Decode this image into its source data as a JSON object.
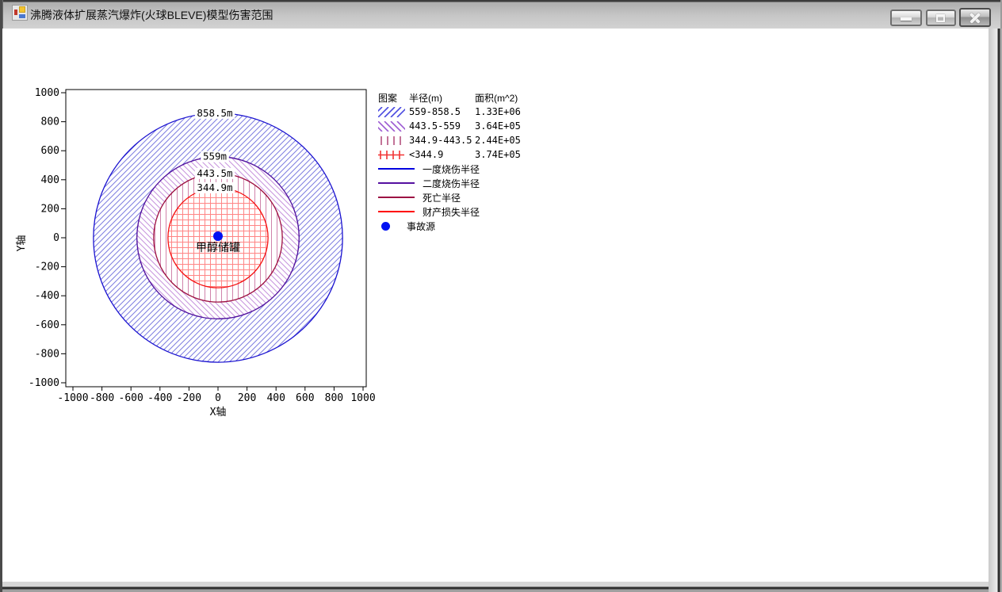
{
  "window": {
    "title": "沸腾液体扩展蒸汽爆炸(火球BLEVE)模型伤害范围"
  },
  "chart_data": {
    "type": "concentric_zones",
    "xlabel": "X轴",
    "ylabel": "Y轴",
    "xlim": [
      -1050,
      1050
    ],
    "ylim": [
      -1050,
      1050
    ],
    "xticks": [
      -1000,
      -800,
      -600,
      -400,
      -200,
      0,
      200,
      400,
      600,
      800,
      1000
    ],
    "yticks": [
      1000,
      800,
      600,
      400,
      200,
      0,
      -200,
      -400,
      -600,
      -800,
      -1000
    ],
    "grid": false,
    "center": {
      "x": 0,
      "y": 0,
      "label": "甲醇储罐",
      "marker_color": "#0011f2"
    },
    "zones": [
      {
        "label": "858.5m",
        "outer_radius_m": 858.5,
        "radius_range_m": "559-858.5",
        "area_m2": "1.33E+06",
        "meaning": "一度烧伤半径",
        "stroke_color": "#1a12d0",
        "hatch": "diag-right",
        "hatch_color": "#7d7de0",
        "swatch_color": "#4a4ae0"
      },
      {
        "label": "559m",
        "outer_radius_m": 559,
        "radius_range_m": "443.5-559",
        "area_m2": "3.64E+05",
        "meaning": "二度烧伤半径",
        "stroke_color": "#50109d",
        "hatch": "diag-left",
        "hatch_color": "#c693dd",
        "swatch_color": "#9c5ad2"
      },
      {
        "label": "443.5m",
        "outer_radius_m": 443.5,
        "radius_range_m": "344.9-443.5",
        "area_m2": "2.44E+05",
        "meaning": "死亡半径",
        "stroke_color": "#9d1040",
        "hatch": "vertical",
        "hatch_color": "#d083ab",
        "swatch_color": "#b4517f"
      },
      {
        "label": "344.9m",
        "outer_radius_m": 344.9,
        "radius_range_m": "<344.9",
        "area_m2": "3.74E+05",
        "meaning": "财产损失半径",
        "stroke_color": "#f51111",
        "hatch": "cross",
        "hatch_color": "#ff8585",
        "swatch_color": "#f23333"
      }
    ]
  },
  "legend": {
    "header": {
      "pattern": "图案",
      "radius": "半径(m)",
      "area": "面积(m^2)"
    },
    "lines": [
      {
        "label": "一度烧伤半径",
        "color": "#0000e0"
      },
      {
        "label": "二度烧伤半径",
        "color": "#5511a0"
      },
      {
        "label": "死亡半径",
        "color": "#9d1144"
      },
      {
        "label": "财产损失半径",
        "color": "#ff0000"
      }
    ],
    "source": {
      "label": "事故源",
      "color": "#0011f2"
    }
  }
}
